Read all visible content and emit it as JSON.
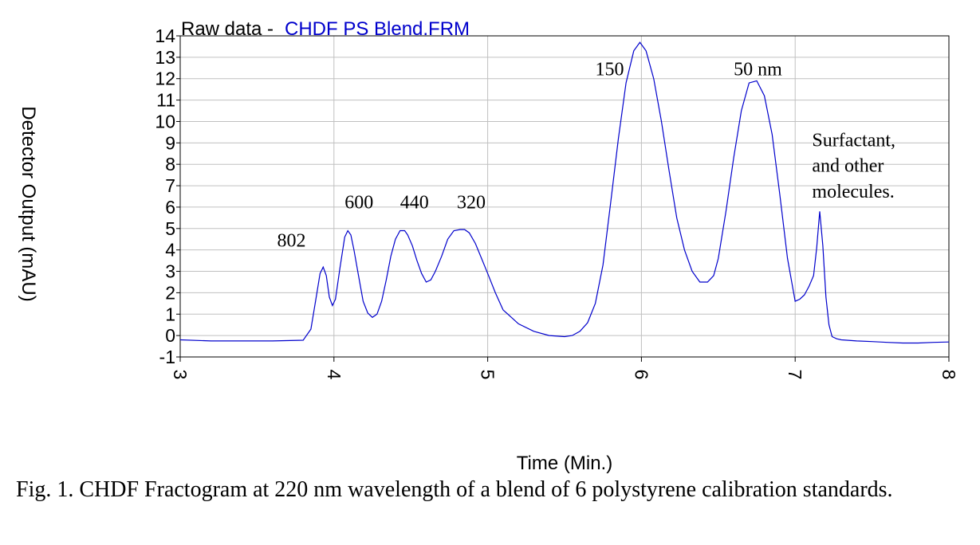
{
  "chart_data": {
    "type": "line",
    "title_prefix": "Raw data -",
    "title_file": "CHDF PS Blend.FRM",
    "title_file_color": "#0000cc",
    "xlabel": "Time (Min.)",
    "ylabel": "Detector Output (mAU)",
    "xlim": [
      3,
      8
    ],
    "ylim": [
      -1,
      14
    ],
    "x_ticks": [
      3,
      4,
      5,
      6,
      7,
      8
    ],
    "y_ticks": [
      -1,
      0,
      1,
      2,
      3,
      4,
      5,
      6,
      7,
      8,
      9,
      10,
      11,
      12,
      13,
      14
    ],
    "grid": true,
    "line_color": "#0000cc",
    "series": [
      {
        "x": [
          3.0,
          3.2,
          3.4,
          3.6,
          3.8,
          3.85,
          3.88,
          3.91,
          3.93,
          3.95,
          3.97,
          3.99,
          4.01,
          4.04,
          4.07,
          4.09,
          4.11,
          4.13,
          4.16,
          4.19,
          4.22,
          4.25,
          4.28,
          4.31,
          4.34,
          4.37,
          4.4,
          4.43,
          4.46,
          4.48,
          4.51,
          4.54,
          4.57,
          4.6,
          4.63,
          4.66,
          4.7,
          4.74,
          4.78,
          4.82,
          4.85,
          4.88,
          4.92,
          4.96,
          5.0,
          5.05,
          5.1,
          5.2,
          5.3,
          5.4,
          5.5,
          5.55,
          5.6,
          5.65,
          5.7,
          5.75,
          5.8,
          5.85,
          5.9,
          5.95,
          5.99,
          6.03,
          6.08,
          6.13,
          6.18,
          6.23,
          6.28,
          6.33,
          6.38,
          6.43,
          6.47,
          6.5,
          6.55,
          6.6,
          6.65,
          6.7,
          6.75,
          6.8,
          6.85,
          6.9,
          6.95,
          7.0,
          7.03,
          7.06,
          7.09,
          7.12,
          7.14,
          7.16,
          7.18,
          7.2,
          7.22,
          7.24,
          7.27,
          7.3,
          7.4,
          7.5,
          7.6,
          7.7,
          7.8,
          7.9,
          8.0
        ],
        "y": [
          -0.2,
          -0.25,
          -0.25,
          -0.25,
          -0.22,
          0.3,
          1.6,
          2.9,
          3.2,
          2.8,
          1.8,
          1.4,
          1.7,
          3.2,
          4.6,
          4.9,
          4.7,
          4.0,
          2.8,
          1.6,
          1.05,
          0.85,
          1.0,
          1.6,
          2.6,
          3.7,
          4.5,
          4.9,
          4.9,
          4.7,
          4.2,
          3.5,
          2.9,
          2.5,
          2.6,
          3.0,
          3.7,
          4.5,
          4.9,
          4.95,
          4.95,
          4.8,
          4.3,
          3.6,
          2.9,
          2.0,
          1.2,
          0.55,
          0.2,
          0.0,
          -0.05,
          0.0,
          0.2,
          0.6,
          1.5,
          3.3,
          6.2,
          9.2,
          11.8,
          13.3,
          13.7,
          13.3,
          12.0,
          10.0,
          7.7,
          5.5,
          4.0,
          3.0,
          2.5,
          2.5,
          2.8,
          3.6,
          5.8,
          8.3,
          10.5,
          11.8,
          11.9,
          11.2,
          9.4,
          6.6,
          3.6,
          1.6,
          1.7,
          1.9,
          2.3,
          2.8,
          4.1,
          5.8,
          4.2,
          1.8,
          0.5,
          -0.05,
          -0.15,
          -0.2,
          -0.25,
          -0.28,
          -0.32,
          -0.35,
          -0.35,
          -0.32,
          -0.3
        ]
      }
    ],
    "annotations": [
      {
        "text": "802",
        "x": 3.63,
        "y": 4.15
      },
      {
        "text": "600",
        "x": 4.07,
        "y": 5.95
      },
      {
        "text": "440",
        "x": 4.43,
        "y": 5.95
      },
      {
        "text": "320",
        "x": 4.8,
        "y": 5.95
      },
      {
        "text": "150",
        "x": 5.7,
        "y": 12.15
      },
      {
        "text": "50 nm",
        "x": 6.6,
        "y": 12.15
      },
      {
        "text": "Surfactant,",
        "x": 7.11,
        "y": 8.85
      },
      {
        "text": "and other",
        "x": 7.11,
        "y": 7.65
      },
      {
        "text": "molecules.",
        "x": 7.11,
        "y": 6.45
      }
    ]
  },
  "caption": "Fig. 1. CHDF Fractogram at 220 nm wavelength of a blend of 6 polystyrene calibration standards."
}
